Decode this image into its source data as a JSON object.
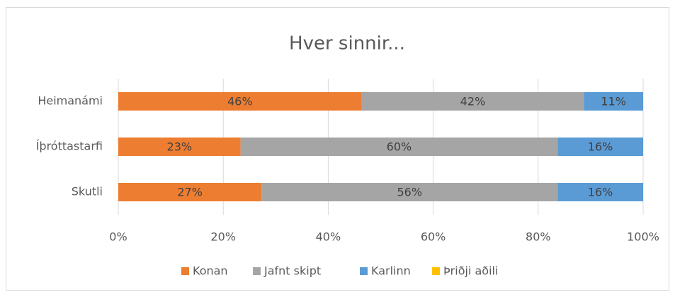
{
  "chart_data": {
    "type": "stacked_bar_horizontal",
    "title": "Hver sinnir...",
    "categories": [
      "Heimanámi",
      "Íþróttastarfi",
      "Skutli"
    ],
    "series": [
      {
        "name": "Konan",
        "color": "#ED7D31",
        "values": [
          46.4,
          23.3,
          27.3
        ],
        "value_labels": [
          "46%",
          "23%",
          "27%"
        ]
      },
      {
        "name": "Jafnt skipt",
        "color": "#A5A5A5",
        "values": [
          42.3,
          60.4,
          56.4
        ],
        "value_labels": [
          "42%",
          "60%",
          "56%"
        ]
      },
      {
        "name": "Karlinn",
        "color": "#5B9BD5",
        "values": [
          11.3,
          16.3,
          16.3
        ],
        "value_labels": [
          "11%",
          "16%",
          "16%"
        ]
      },
      {
        "name": "Þriðji aðili",
        "color": "#FFC000",
        "values": [
          0,
          0,
          0
        ]
      }
    ],
    "xlim": [
      0,
      100
    ],
    "xticks": [
      {
        "value": 0,
        "label": "0%"
      },
      {
        "value": 20,
        "label": "20%"
      },
      {
        "value": 40,
        "label": "40%"
      },
      {
        "value": 60,
        "label": "60%"
      },
      {
        "value": 80,
        "label": "80%"
      },
      {
        "value": 100,
        "label": "100%"
      }
    ],
    "grid": true,
    "legend": "bottom"
  }
}
